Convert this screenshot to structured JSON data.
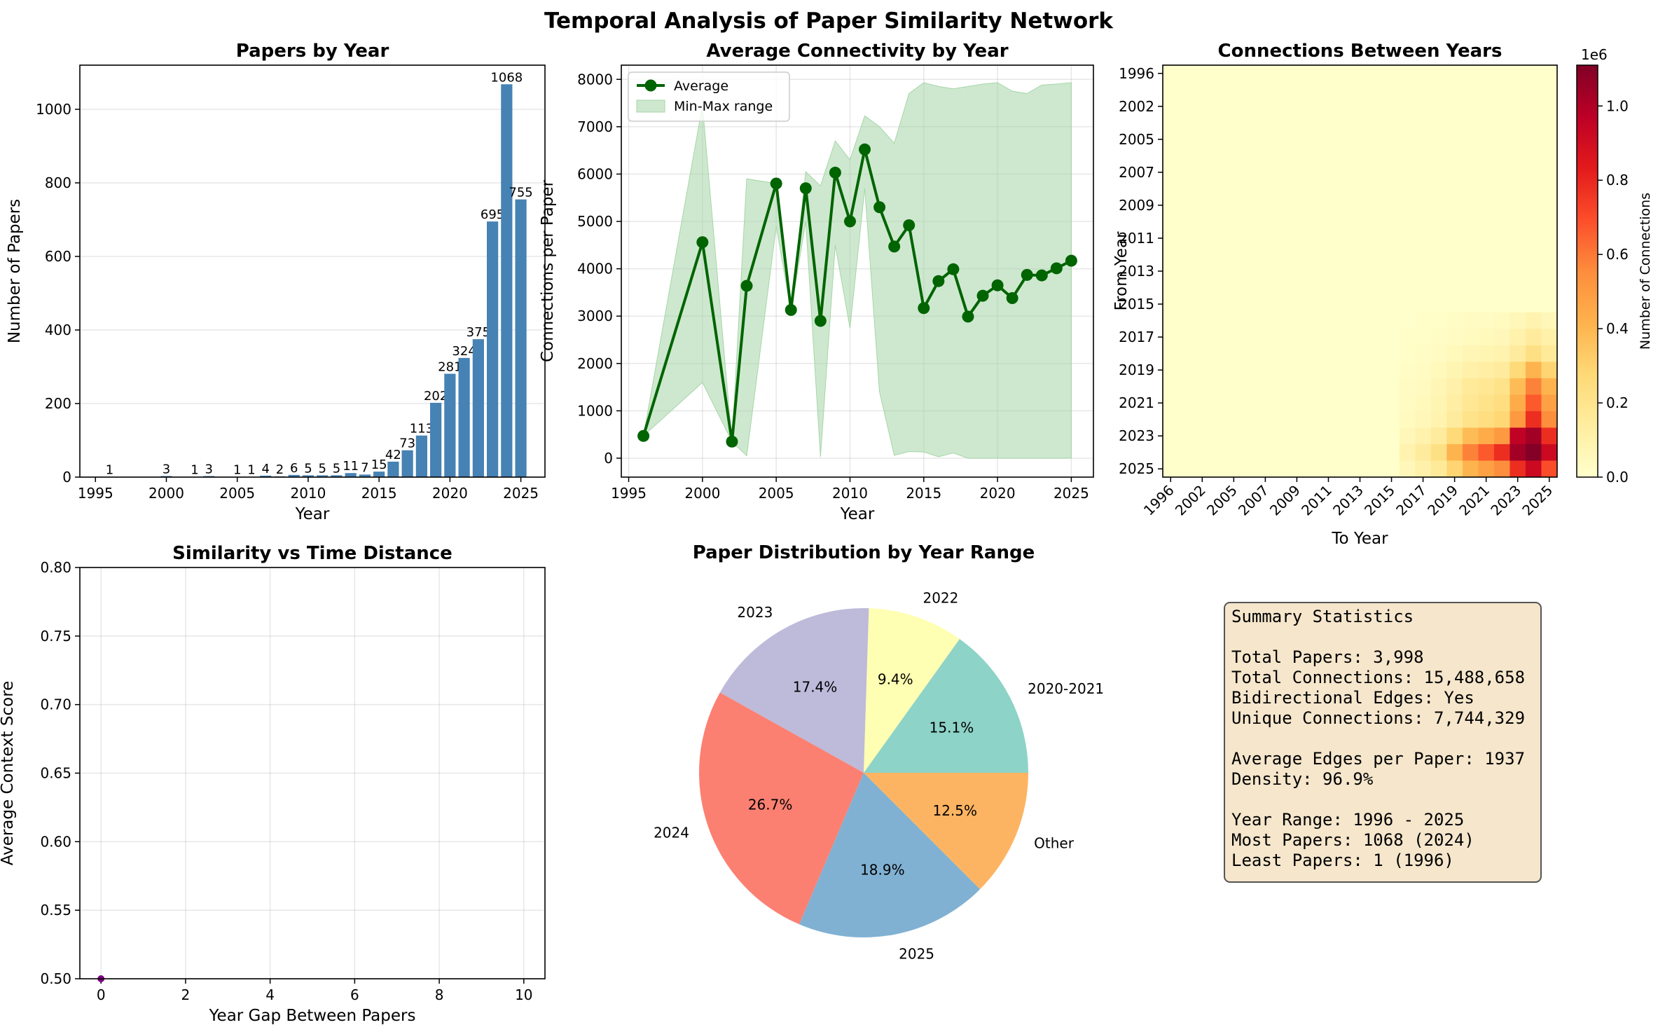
{
  "suptitle": "Temporal Analysis of Paper Similarity Network",
  "colors": {
    "bar": "#4682b4",
    "line": "#006400",
    "band": "#a5d6a7",
    "scatter": "#800080",
    "stats_box": "#f5e6cc"
  },
  "chart_data": [
    {
      "type": "bar",
      "title": "Papers by Year",
      "xlabel": "Year",
      "ylabel": "Number of Papers",
      "x": [
        1996,
        2000,
        2002,
        2003,
        2005,
        2006,
        2007,
        2008,
        2009,
        2010,
        2011,
        2012,
        2013,
        2014,
        2015,
        2016,
        2017,
        2018,
        2019,
        2020,
        2021,
        2022,
        2023,
        2024,
        2025
      ],
      "values": [
        1,
        3,
        1,
        3,
        1,
        1,
        4,
        2,
        6,
        5,
        5,
        5,
        11,
        7,
        15,
        42,
        73,
        113,
        202,
        281,
        324,
        375,
        695,
        1068,
        755
      ],
      "xlim": [
        1993.9,
        2026.7
      ],
      "ylim": [
        0,
        1120
      ],
      "xticks": [
        1995,
        2000,
        2005,
        2010,
        2015,
        2020,
        2025
      ],
      "yticks": [
        0,
        200,
        400,
        600,
        800,
        1000
      ],
      "grid": "y"
    },
    {
      "type": "line",
      "title": "Average Connectivity by Year",
      "xlabel": "Year",
      "ylabel": "Connections per Paper",
      "x": [
        1996,
        2000,
        2002,
        2003,
        2005,
        2006,
        2007,
        2008,
        2009,
        2010,
        2011,
        2012,
        2013,
        2014,
        2015,
        2016,
        2017,
        2018,
        2019,
        2020,
        2021,
        2022,
        2023,
        2024,
        2025
      ],
      "series": [
        {
          "name": "Average",
          "values": [
            470,
            4560,
            350,
            3640,
            5800,
            3130,
            5700,
            2900,
            6030,
            5000,
            6520,
            5300,
            4470,
            4920,
            3170,
            3740,
            3990,
            2990,
            3430,
            3650,
            3380,
            3870,
            3860,
            4010,
            4170
          ]
        },
        {
          "name": "Min-Max range",
          "min": [
            470,
            1600,
            350,
            50,
            4900,
            3100,
            5000,
            30,
            4500,
            2750,
            5700,
            1400,
            60,
            140,
            130,
            30,
            110,
            0,
            0,
            0,
            0,
            0,
            0,
            0,
            0
          ],
          "max": [
            470,
            7450,
            350,
            5900,
            5800,
            3150,
            6050,
            5750,
            6700,
            6300,
            7230,
            7000,
            6650,
            7700,
            7930,
            7850,
            7800,
            7850,
            7900,
            7930,
            7750,
            7700,
            7880,
            7900,
            7930
          ]
        }
      ],
      "xlim": [
        1994.5,
        2026.5
      ],
      "ylim": [
        -400,
        8300
      ],
      "xticks": [
        1995,
        2000,
        2005,
        2010,
        2015,
        2020,
        2025
      ],
      "yticks": [
        0,
        1000,
        2000,
        3000,
        4000,
        5000,
        6000,
        7000,
        8000
      ],
      "grid": "both",
      "legend": "top-left"
    },
    {
      "type": "heatmap",
      "title": "Connections Between Years",
      "xlabel": "To Year",
      "ylabel": "From Year",
      "years": [
        1996,
        2000,
        2002,
        2003,
        2005,
        2006,
        2007,
        2008,
        2009,
        2010,
        2011,
        2012,
        2013,
        2014,
        2015,
        2016,
        2017,
        2018,
        2019,
        2020,
        2021,
        2022,
        2023,
        2024,
        2025
      ],
      "ticks": [
        1996,
        2002,
        2005,
        2007,
        2009,
        2011,
        2013,
        2015,
        2017,
        2019,
        2021,
        2023,
        2025
      ],
      "matrix_recent": {
        "years": [
          2016,
          2017,
          2018,
          2019,
          2020,
          2021,
          2022,
          2023,
          2024,
          2025
        ],
        "values": [
          [
            0.0,
            0.01,
            0.01,
            0.02,
            0.03,
            0.03,
            0.04,
            0.06,
            0.09,
            0.06
          ],
          [
            0.01,
            0.01,
            0.02,
            0.03,
            0.04,
            0.05,
            0.06,
            0.1,
            0.15,
            0.11
          ],
          [
            0.01,
            0.02,
            0.03,
            0.05,
            0.07,
            0.08,
            0.09,
            0.15,
            0.23,
            0.16
          ],
          [
            0.02,
            0.03,
            0.05,
            0.08,
            0.11,
            0.13,
            0.15,
            0.27,
            0.41,
            0.29
          ],
          [
            0.03,
            0.04,
            0.07,
            0.11,
            0.16,
            0.18,
            0.21,
            0.38,
            0.58,
            0.41
          ],
          [
            0.03,
            0.05,
            0.08,
            0.13,
            0.18,
            0.21,
            0.24,
            0.44,
            0.67,
            0.48
          ],
          [
            0.04,
            0.06,
            0.09,
            0.15,
            0.21,
            0.24,
            0.28,
            0.51,
            0.78,
            0.55
          ],
          [
            0.06,
            0.1,
            0.15,
            0.27,
            0.38,
            0.44,
            0.51,
            0.96,
            1.03,
            0.78
          ],
          [
            0.09,
            0.15,
            0.23,
            0.41,
            0.58,
            0.67,
            0.78,
            1.03,
            1.1,
            0.92
          ],
          [
            0.06,
            0.11,
            0.16,
            0.29,
            0.41,
            0.48,
            0.55,
            0.78,
            0.92,
            0.7
          ]
        ]
      },
      "colorbar": {
        "label": "Number of Connections",
        "exponent": "1e6",
        "ticks": [
          "0.0",
          "0.2",
          "0.4",
          "0.6",
          "0.8",
          "1.0"
        ],
        "vmax": 1.11
      }
    },
    {
      "type": "scatter",
      "title": "Similarity vs Time Distance",
      "xlabel": "Year Gap Between Papers",
      "ylabel": "Average Context Score",
      "points": [
        {
          "x": 0,
          "y": 0.5
        }
      ],
      "xlim": [
        -0.5,
        10.5
      ],
      "ylim": [
        0.5,
        0.8
      ],
      "xticks": [
        0,
        2,
        4,
        6,
        8,
        10
      ],
      "yticks": [
        "0.50",
        "0.55",
        "0.60",
        "0.65",
        "0.70",
        "0.75",
        "0.80"
      ],
      "grid": "both"
    },
    {
      "type": "pie",
      "title": "Paper Distribution by Year Range",
      "slices": [
        {
          "label": "2020-2021",
          "pct": "15.1%",
          "value": 15.1,
          "color": "#8dd3c7"
        },
        {
          "label": "2022",
          "pct": "9.4%",
          "value": 9.4,
          "color": "#ffffb3"
        },
        {
          "label": "2023",
          "pct": "17.4%",
          "value": 17.4,
          "color": "#bebada"
        },
        {
          "label": "2024",
          "pct": "26.7%",
          "value": 26.7,
          "color": "#fb8072"
        },
        {
          "label": "2025",
          "pct": "18.9%",
          "value": 18.9,
          "color": "#80b1d3"
        },
        {
          "label": "Other",
          "pct": "12.5%",
          "value": 12.5,
          "color": "#fdb462"
        }
      ]
    }
  ],
  "summary": {
    "lines": [
      "Summary Statistics",
      "",
      "Total Papers: 3,998",
      "Total Connections: 15,488,658",
      "Bidirectional Edges: Yes",
      "Unique Connections: 7,744,329",
      "",
      "Average Edges per Paper: 1937",
      "Density: 96.9%",
      "",
      "Year Range: 1996 - 2025",
      "Most Papers: 1068 (2024)",
      "Least Papers: 1 (1996)"
    ]
  }
}
